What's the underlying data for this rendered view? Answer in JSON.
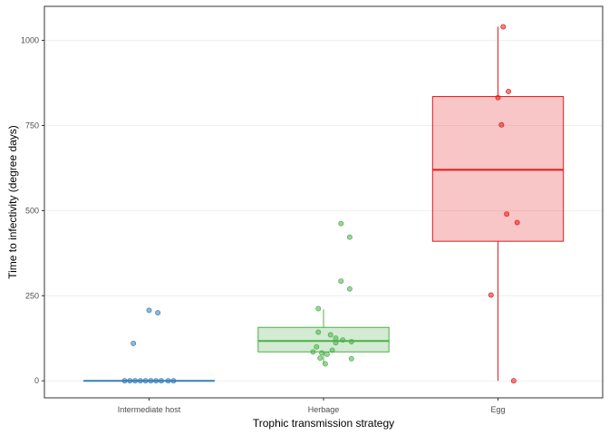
{
  "chart_data": {
    "type": "box",
    "title": "",
    "xlabel": "Trophic transmission strategy",
    "ylabel": "Time to infectivity (degree days)",
    "categories": [
      "Intermediate host",
      "Herbage",
      "Egg"
    ],
    "ylim": [
      -50,
      1100
    ],
    "yticks": [
      0,
      250,
      500,
      750,
      1000
    ],
    "grid": true,
    "legend": "none",
    "colors": {
      "Intermediate host": "#377eb8",
      "Herbage": "#4daf4a",
      "Egg": "#e41a1c"
    },
    "boxes": [
      {
        "category": "Intermediate host",
        "min": 0,
        "q1": 0,
        "median": 0,
        "q3": 0,
        "max": 0
      },
      {
        "category": "Herbage",
        "min": 50,
        "q1": 85,
        "median": 117,
        "q3": 157,
        "max": 210
      },
      {
        "category": "Egg",
        "min": 0,
        "q1": 410,
        "median": 620,
        "q3": 835,
        "max": 1040
      }
    ],
    "points": [
      {
        "category": "Intermediate host",
        "jitter": 0.0,
        "y": 207
      },
      {
        "category": "Intermediate host",
        "jitter": 0.05,
        "y": 200
      },
      {
        "category": "Intermediate host",
        "jitter": -0.09,
        "y": 110
      },
      {
        "category": "Intermediate host",
        "jitter": -0.14,
        "y": 0
      },
      {
        "category": "Intermediate host",
        "jitter": -0.11,
        "y": 0
      },
      {
        "category": "Intermediate host",
        "jitter": -0.08,
        "y": 0
      },
      {
        "category": "Intermediate host",
        "jitter": -0.05,
        "y": 0
      },
      {
        "category": "Intermediate host",
        "jitter": -0.02,
        "y": 0
      },
      {
        "category": "Intermediate host",
        "jitter": 0.01,
        "y": 0
      },
      {
        "category": "Intermediate host",
        "jitter": 0.04,
        "y": 0
      },
      {
        "category": "Intermediate host",
        "jitter": 0.07,
        "y": 0
      },
      {
        "category": "Intermediate host",
        "jitter": 0.11,
        "y": 0
      },
      {
        "category": "Intermediate host",
        "jitter": 0.14,
        "y": 0
      },
      {
        "category": "Herbage",
        "jitter": 0.1,
        "y": 462
      },
      {
        "category": "Herbage",
        "jitter": 0.15,
        "y": 422
      },
      {
        "category": "Herbage",
        "jitter": 0.1,
        "y": 293
      },
      {
        "category": "Herbage",
        "jitter": 0.15,
        "y": 270
      },
      {
        "category": "Herbage",
        "jitter": -0.03,
        "y": 212
      },
      {
        "category": "Herbage",
        "jitter": -0.03,
        "y": 143
      },
      {
        "category": "Herbage",
        "jitter": 0.04,
        "y": 135
      },
      {
        "category": "Herbage",
        "jitter": 0.07,
        "y": 125
      },
      {
        "category": "Herbage",
        "jitter": 0.11,
        "y": 120
      },
      {
        "category": "Herbage",
        "jitter": 0.16,
        "y": 115
      },
      {
        "category": "Herbage",
        "jitter": 0.07,
        "y": 112
      },
      {
        "category": "Herbage",
        "jitter": -0.04,
        "y": 100
      },
      {
        "category": "Herbage",
        "jitter": 0.05,
        "y": 90
      },
      {
        "category": "Herbage",
        "jitter": -0.06,
        "y": 85
      },
      {
        "category": "Herbage",
        "jitter": -0.01,
        "y": 82
      },
      {
        "category": "Herbage",
        "jitter": 0.02,
        "y": 78
      },
      {
        "category": "Herbage",
        "jitter": -0.02,
        "y": 67
      },
      {
        "category": "Herbage",
        "jitter": 0.16,
        "y": 65
      },
      {
        "category": "Herbage",
        "jitter": 0.01,
        "y": 50
      },
      {
        "category": "Egg",
        "jitter": 0.03,
        "y": 1040
      },
      {
        "category": "Egg",
        "jitter": 0.06,
        "y": 850
      },
      {
        "category": "Egg",
        "jitter": 0.0,
        "y": 832
      },
      {
        "category": "Egg",
        "jitter": 0.02,
        "y": 752
      },
      {
        "category": "Egg",
        "jitter": 0.05,
        "y": 490
      },
      {
        "category": "Egg",
        "jitter": 0.11,
        "y": 465
      },
      {
        "category": "Egg",
        "jitter": -0.04,
        "y": 252
      },
      {
        "category": "Egg",
        "jitter": 0.09,
        "y": 0
      }
    ]
  }
}
